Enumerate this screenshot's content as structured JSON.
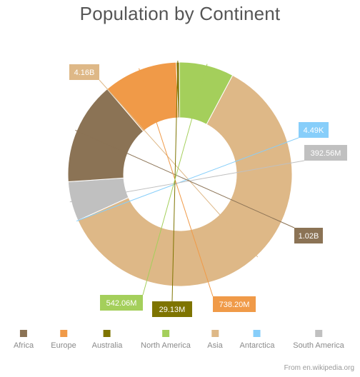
{
  "chart_data": {
    "type": "pie",
    "donut": true,
    "title": "Population by Continent",
    "unit": "people",
    "slices": [
      {
        "name": "Asia",
        "value": 4160000000,
        "label": "4.16B",
        "color": "#DEB887"
      },
      {
        "name": "Antarctica",
        "value": 4490,
        "label": "4.49K",
        "color": "#87CEFA"
      },
      {
        "name": "South America",
        "value": 392560000,
        "label": "392.56M",
        "color": "#C0C0C0"
      },
      {
        "name": "Africa",
        "value": 1020000000,
        "label": "1.02B",
        "color": "#8B7355"
      },
      {
        "name": "Europe",
        "value": 738200000,
        "label": "738.20M",
        "color": "#F09A48"
      },
      {
        "name": "Australia",
        "value": 29130000,
        "label": "29.13M",
        "color": "#7E7400"
      },
      {
        "name": "North America",
        "value": 542060000,
        "label": "542.06M",
        "color": "#A4CF5B"
      }
    ],
    "legend": {
      "placement": "bottom",
      "order": [
        "Africa",
        "Europe",
        "Australia",
        "North America",
        "Asia",
        "Antarctica",
        "South America"
      ]
    },
    "source": "From en.wikipedia.org"
  }
}
